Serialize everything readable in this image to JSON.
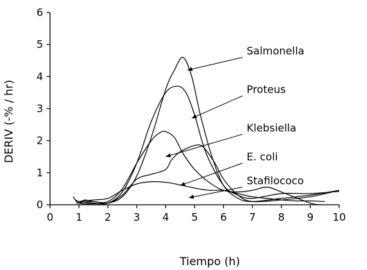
{
  "chart_data": {
    "type": "line",
    "title": "",
    "xlabel": "Tiempo (h)",
    "ylabel": "DERIV (-% / hr)",
    "xlim": [
      0,
      10
    ],
    "ylim": [
      0,
      6
    ],
    "xticks": [
      0,
      1,
      2,
      3,
      4,
      5,
      6,
      7,
      8,
      9,
      10
    ],
    "yticks": [
      0,
      1,
      2,
      3,
      4,
      5,
      6
    ],
    "grid": false,
    "legend": "none",
    "line_color": "#000000",
    "series": [
      {
        "name": "Salmonella",
        "x": [
          0.8,
          1.0,
          1.5,
          2.0,
          2.5,
          3.0,
          3.5,
          4.0,
          4.3,
          4.6,
          4.9,
          5.2,
          5.6,
          6.0,
          6.5,
          7.0,
          8.0,
          9.0,
          10.0
        ],
        "y": [
          0.25,
          0.05,
          0.03,
          0.05,
          0.25,
          0.9,
          2.1,
          3.6,
          4.2,
          4.6,
          4.0,
          2.8,
          1.5,
          0.6,
          0.2,
          0.1,
          0.2,
          0.3,
          0.45
        ]
      },
      {
        "name": "Proteus",
        "x": [
          0.9,
          1.0,
          1.5,
          2.0,
          2.5,
          3.0,
          3.5,
          4.0,
          4.4,
          4.7,
          5.0,
          5.4,
          6.0,
          6.5,
          7.0,
          8.0,
          9.0,
          10.0
        ],
        "y": [
          0.15,
          0.1,
          0.05,
          0.05,
          0.4,
          1.3,
          2.6,
          3.5,
          3.7,
          3.5,
          2.8,
          1.6,
          0.6,
          0.3,
          0.2,
          0.35,
          0.35,
          0.42
        ]
      },
      {
        "name": "Klebsiella",
        "x": [
          1.0,
          1.2,
          1.5,
          2.0,
          2.5,
          3.0,
          3.5,
          3.8,
          4.0,
          4.3,
          4.6,
          5.0,
          5.5,
          6.0,
          6.5,
          7.0,
          7.5,
          8.0,
          9.0,
          9.4
        ],
        "y": [
          0.05,
          0.15,
          0.1,
          0.1,
          0.5,
          1.3,
          2.0,
          2.25,
          2.28,
          2.1,
          1.6,
          1.1,
          0.7,
          0.45,
          0.4,
          0.45,
          0.55,
          0.4,
          0.05,
          0.0
        ]
      },
      {
        "name": "E. coli",
        "x": [
          0.9,
          1.2,
          1.5,
          2.0,
          2.5,
          3.0,
          3.5,
          4.0,
          4.2,
          4.5,
          5.0,
          5.3,
          5.7,
          6.0,
          6.5,
          7.0,
          8.0,
          9.0,
          10.0
        ],
        "y": [
          0.05,
          0.08,
          0.1,
          0.05,
          0.3,
          0.8,
          0.95,
          1.1,
          1.4,
          1.65,
          1.85,
          1.8,
          1.3,
          0.8,
          0.3,
          0.1,
          0.15,
          0.25,
          0.45
        ]
      },
      {
        "name": "Stafilococo",
        "x": [
          1.0,
          1.5,
          2.0,
          2.5,
          3.0,
          3.5,
          4.0,
          4.5,
          5.0,
          5.5,
          6.0,
          6.5,
          7.0,
          8.0,
          8.5,
          9.0,
          9.5
        ],
        "y": [
          0.1,
          0.15,
          0.2,
          0.45,
          0.65,
          0.72,
          0.7,
          0.62,
          0.52,
          0.45,
          0.45,
          0.35,
          0.25,
          0.15,
          0.12,
          0.12,
          0.1
        ]
      }
    ],
    "annotations": [
      {
        "text": "Salmonella",
        "target_series": "Salmonella",
        "point": [
          4.75,
          4.2
        ],
        "label_at": [
          6.8,
          4.6
        ]
      },
      {
        "text": "Proteus",
        "target_series": "Proteus",
        "point": [
          4.9,
          2.7
        ],
        "label_at": [
          6.8,
          3.4
        ]
      },
      {
        "text": "Klebsiella",
        "target_series": "Klebsiella",
        "point": [
          4.0,
          1.5
        ],
        "label_at": [
          6.8,
          2.2
        ]
      },
      {
        "text": "E. coli",
        "target_series": "E. coli",
        "point": [
          4.5,
          0.6
        ],
        "label_at": [
          6.8,
          1.3
        ]
      },
      {
        "text": "Stafilococo",
        "target_series": "Stafilococo",
        "point": [
          4.8,
          0.22
        ],
        "label_at": [
          6.8,
          0.55
        ]
      }
    ]
  }
}
